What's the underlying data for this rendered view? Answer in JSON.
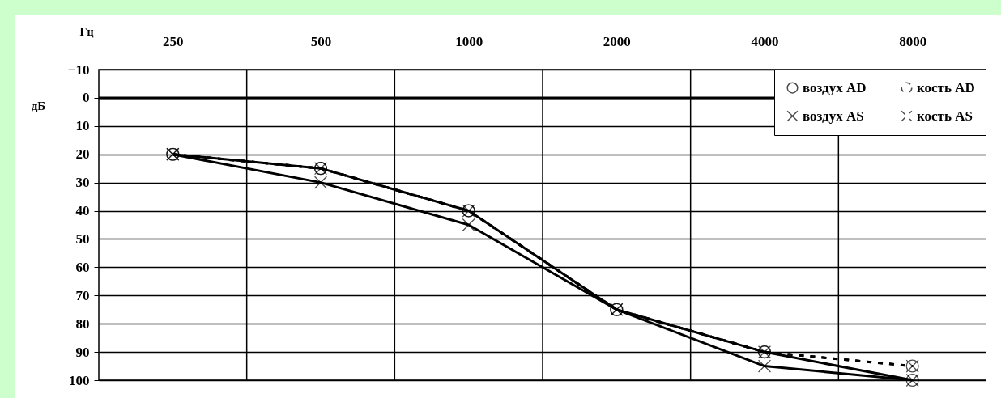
{
  "chart_data": {
    "type": "line",
    "xlabel": "Гц",
    "ylabel": "дБ",
    "categories": [
      "250",
      "500",
      "1000",
      "2000",
      "4000",
      "8000"
    ],
    "ylim": [
      100,
      -10
    ],
    "yticks": [
      -10,
      0,
      10,
      20,
      30,
      40,
      50,
      60,
      70,
      80,
      90,
      100
    ],
    "grid": true,
    "legend": "top right",
    "ref_lines": [
      {
        "axis": "y",
        "value": 0,
        "color": "#000000"
      }
    ],
    "series": [
      {
        "name": "воздух AD",
        "color": "#000000",
        "marker": "circle",
        "line_style": "solid",
        "values": [
          20,
          25,
          40,
          75,
          90,
          100
        ]
      },
      {
        "name": "кость AD",
        "color": "#000000",
        "marker": "circle",
        "line_style": "dashed",
        "values": [
          20,
          25,
          40,
          75,
          90,
          95
        ]
      },
      {
        "name": "воздух AS",
        "color": "#000000",
        "marker": "cross",
        "line_style": "solid",
        "values": [
          20,
          30,
          45,
          75,
          95,
          100
        ]
      },
      {
        "name": "кость AS",
        "color": "#000000",
        "marker": "cross",
        "line_style": "dashed",
        "values": [
          20,
          25,
          40,
          75,
          90,
          95
        ]
      }
    ]
  }
}
